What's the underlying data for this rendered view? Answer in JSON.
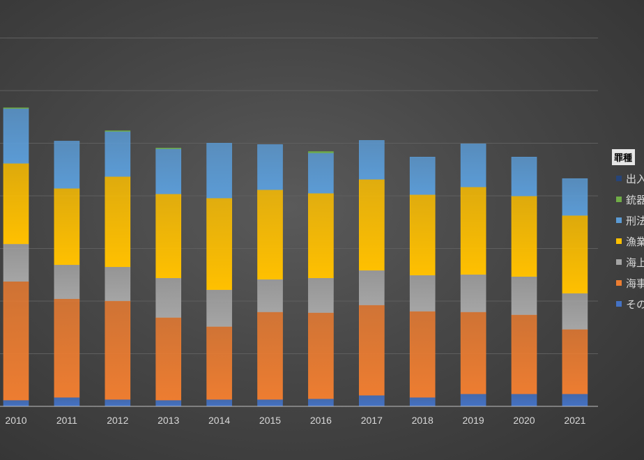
{
  "chart_data": {
    "type": "bar",
    "stacked": true,
    "categories": [
      "2010",
      "2011",
      "2012",
      "2013",
      "2014",
      "2015",
      "2016",
      "2017",
      "2018",
      "2019",
      "2020",
      "2021"
    ],
    "series": [
      {
        "name": "その他",
        "color": "#4472c4",
        "values": [
          9,
          13,
          10,
          9,
          10,
          10,
          11,
          16,
          13,
          18,
          18,
          18
        ]
      },
      {
        "name": "海事",
        "color": "#ed7d31",
        "values": [
          171,
          142,
          142,
          119,
          105,
          126,
          124,
          130,
          124,
          118,
          114,
          93
        ]
      },
      {
        "name": "海上",
        "color": "#a5a5a5",
        "values": [
          54,
          49,
          49,
          57,
          53,
          47,
          50,
          50,
          52,
          54,
          55,
          52
        ]
      },
      {
        "name": "漁業",
        "color": "#ffc000",
        "values": [
          116,
          110,
          130,
          121,
          132,
          129,
          122,
          131,
          116,
          126,
          116,
          112
        ]
      },
      {
        "name": "刑法",
        "color": "#5b9bd5",
        "values": [
          79,
          68,
          65,
          65,
          79,
          65,
          58,
          56,
          54,
          62,
          56,
          53
        ]
      },
      {
        "name": "銃器",
        "color": "#70ad47",
        "values": [
          1,
          0,
          1,
          1,
          0,
          0,
          2,
          0,
          0,
          0,
          0,
          0
        ]
      },
      {
        "name": "出入",
        "color": "#264478",
        "values": [
          0,
          0,
          0,
          0,
          0,
          0,
          0,
          0,
          0,
          0,
          0,
          0
        ]
      }
    ],
    "ylim": [
      0,
      530
    ],
    "grid": true,
    "legend_position": "right",
    "legend_title": "罪種"
  }
}
